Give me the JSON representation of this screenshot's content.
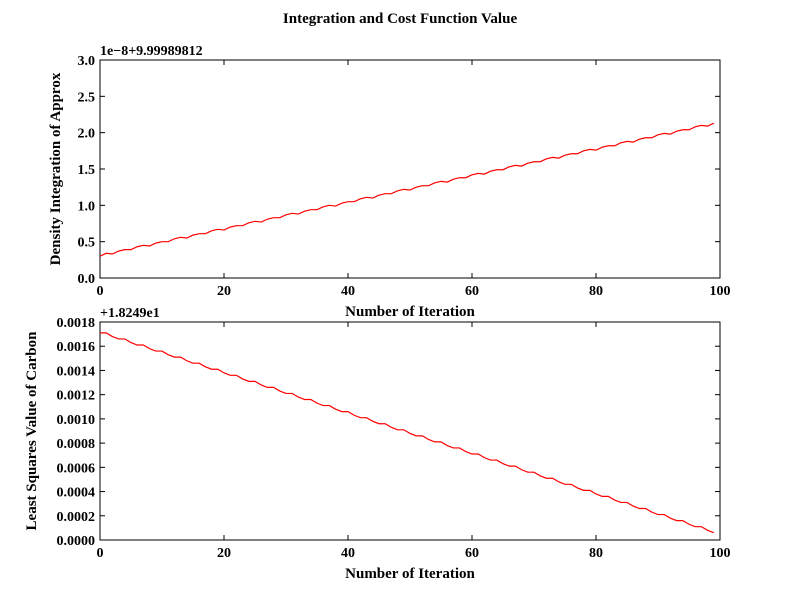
{
  "figure": {
    "title": "Integration and Cost Function Value"
  },
  "chart_data": [
    {
      "type": "line",
      "title": "",
      "xlabel": "Number of Iteration",
      "ylabel": "Density Integration of Approx",
      "offset_text": "1e−8+9.99989812",
      "xlim": [
        0,
        100
      ],
      "ylim": [
        0.0,
        3.0
      ],
      "xticks": [
        "0",
        "20",
        "40",
        "60",
        "80",
        "100"
      ],
      "yticks": [
        "0.0",
        "0.5",
        "1.0",
        "1.5",
        "2.0",
        "2.5",
        "3.0"
      ],
      "xtick_values": [
        0,
        20,
        40,
        60,
        80,
        100
      ],
      "ytick_values": [
        0.0,
        0.5,
        1.0,
        1.5,
        2.0,
        2.5,
        3.0
      ],
      "grid": false,
      "series": [
        {
          "color": "#ff0000",
          "x": [
            0,
            1,
            2,
            3,
            4,
            5,
            6,
            7,
            8,
            9,
            10,
            11,
            12,
            13,
            14,
            15,
            16,
            17,
            18,
            19,
            20,
            21,
            22,
            23,
            24,
            25,
            26,
            27,
            28,
            29,
            30,
            31,
            32,
            33,
            34,
            35,
            36,
            37,
            38,
            39,
            40,
            41,
            42,
            43,
            44,
            45,
            46,
            47,
            48,
            49,
            50,
            51,
            52,
            53,
            54,
            55,
            56,
            57,
            58,
            59,
            60,
            61,
            62,
            63,
            64,
            65,
            66,
            67,
            68,
            69,
            70,
            71,
            72,
            73,
            74,
            75,
            76,
            77,
            78,
            79,
            80,
            81,
            82,
            83,
            84,
            85,
            86,
            87,
            88,
            89,
            90,
            91,
            92,
            93,
            94,
            95,
            96,
            97,
            98,
            99
          ],
          "y": [
            0.3,
            0.34,
            0.33,
            0.37,
            0.39,
            0.39,
            0.43,
            0.45,
            0.44,
            0.48,
            0.5,
            0.5,
            0.54,
            0.56,
            0.55,
            0.59,
            0.61,
            0.61,
            0.65,
            0.67,
            0.66,
            0.7,
            0.72,
            0.72,
            0.76,
            0.78,
            0.77,
            0.81,
            0.83,
            0.83,
            0.87,
            0.89,
            0.88,
            0.92,
            0.94,
            0.94,
            0.98,
            1.0,
            0.99,
            1.03,
            1.05,
            1.05,
            1.09,
            1.11,
            1.1,
            1.14,
            1.16,
            1.16,
            1.2,
            1.22,
            1.21,
            1.25,
            1.27,
            1.27,
            1.31,
            1.33,
            1.32,
            1.36,
            1.38,
            1.38,
            1.42,
            1.44,
            1.43,
            1.47,
            1.49,
            1.49,
            1.53,
            1.55,
            1.54,
            1.58,
            1.6,
            1.6,
            1.64,
            1.66,
            1.65,
            1.69,
            1.71,
            1.71,
            1.75,
            1.77,
            1.76,
            1.8,
            1.82,
            1.82,
            1.86,
            1.88,
            1.87,
            1.91,
            1.93,
            1.93,
            1.97,
            1.99,
            1.98,
            2.02,
            2.04,
            2.04,
            2.08,
            2.1,
            2.09,
            2.13
          ]
        }
      ]
    },
    {
      "type": "line",
      "title": "",
      "xlabel": "Number of Iteration",
      "ylabel": "Least Squares Value of Carbon",
      "offset_text": "+1.8249e1",
      "xlim": [
        0,
        100
      ],
      "ylim": [
        0.0,
        0.0018
      ],
      "xticks": [
        "0",
        "20",
        "40",
        "60",
        "80",
        "100"
      ],
      "yticks": [
        "0.0000",
        "0.0002",
        "0.0004",
        "0.0006",
        "0.0008",
        "0.0010",
        "0.0012",
        "0.0014",
        "0.0016",
        "0.0018"
      ],
      "xtick_values": [
        0,
        20,
        40,
        60,
        80,
        100
      ],
      "ytick_values": [
        0.0,
        0.0002,
        0.0004,
        0.0006,
        0.0008,
        0.001,
        0.0012,
        0.0014,
        0.0016,
        0.0018
      ],
      "grid": false,
      "series": [
        {
          "color": "#ff0000",
          "x": [
            0,
            1,
            2,
            3,
            4,
            5,
            6,
            7,
            8,
            9,
            10,
            11,
            12,
            13,
            14,
            15,
            16,
            17,
            18,
            19,
            20,
            21,
            22,
            23,
            24,
            25,
            26,
            27,
            28,
            29,
            30,
            31,
            32,
            33,
            34,
            35,
            36,
            37,
            38,
            39,
            40,
            41,
            42,
            43,
            44,
            45,
            46,
            47,
            48,
            49,
            50,
            51,
            52,
            53,
            54,
            55,
            56,
            57,
            58,
            59,
            60,
            61,
            62,
            63,
            64,
            65,
            66,
            67,
            68,
            69,
            70,
            71,
            72,
            73,
            74,
            75,
            76,
            77,
            78,
            79,
            80,
            81,
            82,
            83,
            84,
            85,
            86,
            87,
            88,
            89,
            90,
            91,
            92,
            93,
            94,
            95,
            96,
            97,
            98,
            99
          ],
          "y": [
            0.00171,
            0.00171,
            0.00168,
            0.00166,
            0.00166,
            0.00163,
            0.00161,
            0.00161,
            0.00158,
            0.00156,
            0.00156,
            0.00153,
            0.00151,
            0.00151,
            0.00148,
            0.00146,
            0.00146,
            0.00143,
            0.00141,
            0.00141,
            0.00138,
            0.00136,
            0.00136,
            0.00133,
            0.00131,
            0.00131,
            0.00128,
            0.00126,
            0.00126,
            0.00123,
            0.00121,
            0.00121,
            0.00118,
            0.00116,
            0.00116,
            0.00113,
            0.00111,
            0.00111,
            0.00108,
            0.00106,
            0.00106,
            0.00103,
            0.00101,
            0.00101,
            0.00098,
            0.00096,
            0.00096,
            0.00093,
            0.00091,
            0.00091,
            0.00088,
            0.00086,
            0.00086,
            0.00083,
            0.00081,
            0.00081,
            0.00078,
            0.00076,
            0.00076,
            0.00073,
            0.00071,
            0.00071,
            0.00068,
            0.00066,
            0.00066,
            0.00063,
            0.00061,
            0.00061,
            0.00058,
            0.00056,
            0.00056,
            0.00053,
            0.00051,
            0.00051,
            0.00048,
            0.00046,
            0.00046,
            0.00043,
            0.00041,
            0.00041,
            0.00038,
            0.00036,
            0.00036,
            0.00033,
            0.00031,
            0.00031,
            0.00028,
            0.00026,
            0.00026,
            0.00023,
            0.00021,
            0.00021,
            0.00018,
            0.00016,
            0.00016,
            0.00013,
            0.00011,
            0.00011,
            8e-05,
            6e-05
          ]
        }
      ]
    }
  ]
}
